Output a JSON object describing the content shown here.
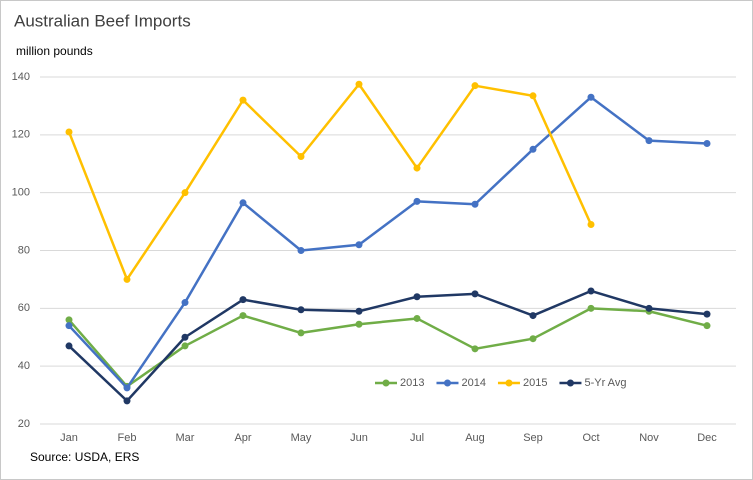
{
  "chart_data": {
    "type": "line",
    "title": "Australian Beef Imports",
    "y_label": "million pounds",
    "source": "Source: USDA, ERS",
    "categories": [
      "Jan",
      "Feb",
      "Mar",
      "Apr",
      "May",
      "Jun",
      "Jul",
      "Aug",
      "Sep",
      "Oct",
      "Nov",
      "Dec"
    ],
    "series": [
      {
        "name": "2013",
        "color": "#70ad47",
        "values": [
          56,
          33,
          47,
          57.5,
          51.5,
          54.5,
          56.5,
          46,
          49.5,
          60,
          59,
          54
        ]
      },
      {
        "name": "2014",
        "color": "#4472c4",
        "values": [
          54,
          32.5,
          62,
          96.5,
          80,
          82,
          97,
          96,
          115,
          133,
          118,
          117
        ]
      },
      {
        "name": "2015",
        "color": "#ffc000",
        "values": [
          121,
          70,
          100,
          132,
          112.5,
          137.5,
          108.5,
          137,
          133.5,
          89,
          null,
          null
        ]
      },
      {
        "name": "5-Yr Avg",
        "color": "#203864",
        "values": [
          47,
          28,
          50,
          63,
          59.5,
          59,
          64,
          65,
          57.5,
          66,
          60,
          58
        ]
      }
    ],
    "ylim": [
      20,
      140
    ],
    "yticks": [
      20,
      40,
      60,
      80,
      100,
      120,
      140
    ],
    "grid": true
  }
}
